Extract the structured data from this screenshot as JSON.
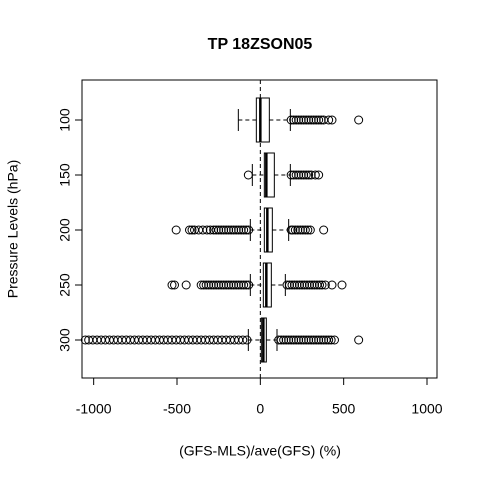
{
  "chart_data": {
    "type": "boxplot",
    "orientation": "horizontal",
    "title": "TP 18ZSON05",
    "x_label": "(GFS-MLS)/ave(GFS) (%)",
    "y_label": "Pressure Levels (hPa)",
    "categories": [
      "100",
      "150",
      "200",
      "250",
      "300"
    ],
    "xlim": [
      -1070,
      1060
    ],
    "xticks": [
      -1000,
      -500,
      0,
      500,
      1000
    ],
    "refline": 0,
    "boxes": [
      {
        "whislo": -132,
        "q1": -24,
        "med": 0,
        "q3": 54,
        "whishi": 180,
        "fliers": [
          185,
          200,
          215,
          230,
          245,
          260,
          275,
          290,
          305,
          320,
          335,
          350,
          365,
          380,
          410,
          430,
          590
        ]
      },
      {
        "whislo": -48,
        "q1": 24,
        "med": 36,
        "q3": 84,
        "whishi": 180,
        "fliers": [
          -72,
          185,
          200,
          215,
          230,
          245,
          260,
          275,
          290,
          305,
          330,
          350
        ]
      },
      {
        "whislo": -60,
        "q1": 24,
        "med": 42,
        "q3": 72,
        "whishi": 170,
        "fliers": [
          -70,
          -85,
          -100,
          -115,
          -130,
          -145,
          -160,
          -175,
          -190,
          -205,
          -220,
          -235,
          -250,
          -265,
          -280,
          -300,
          -320,
          -345,
          -370,
          -395,
          -410,
          -425,
          -505,
          185,
          195,
          210,
          225,
          240,
          255,
          270,
          285,
          300,
          380
        ]
      },
      {
        "whislo": -60,
        "q1": 18,
        "med": 36,
        "q3": 66,
        "whishi": 150,
        "fliers": [
          -70,
          -85,
          -100,
          -115,
          -130,
          -145,
          -160,
          -175,
          -190,
          -205,
          -220,
          -235,
          -250,
          -265,
          -280,
          -295,
          -310,
          -325,
          -340,
          -355,
          -445,
          -515,
          -530,
          160,
          175,
          190,
          205,
          220,
          235,
          250,
          265,
          280,
          295,
          310,
          325,
          340,
          355,
          370,
          390,
          430,
          490
        ]
      },
      {
        "whislo": -72,
        "q1": 6,
        "med": 18,
        "q3": 36,
        "whishi": 100,
        "fliers": [
          -80,
          -105,
          -130,
          -155,
          -180,
          -205,
          -230,
          -255,
          -280,
          -305,
          -330,
          -355,
          -380,
          -405,
          -430,
          -455,
          -480,
          -505,
          -530,
          -555,
          -580,
          -605,
          -630,
          -655,
          -680,
          -705,
          -730,
          -755,
          -780,
          -805,
          -830,
          -855,
          -880,
          -905,
          -930,
          -955,
          -980,
          -1005,
          -1030,
          -1050,
          110,
          125,
          140,
          155,
          170,
          185,
          200,
          215,
          230,
          245,
          260,
          275,
          290,
          305,
          320,
          335,
          350,
          365,
          380,
          395,
          410,
          425,
          445,
          590
        ]
      }
    ]
  }
}
